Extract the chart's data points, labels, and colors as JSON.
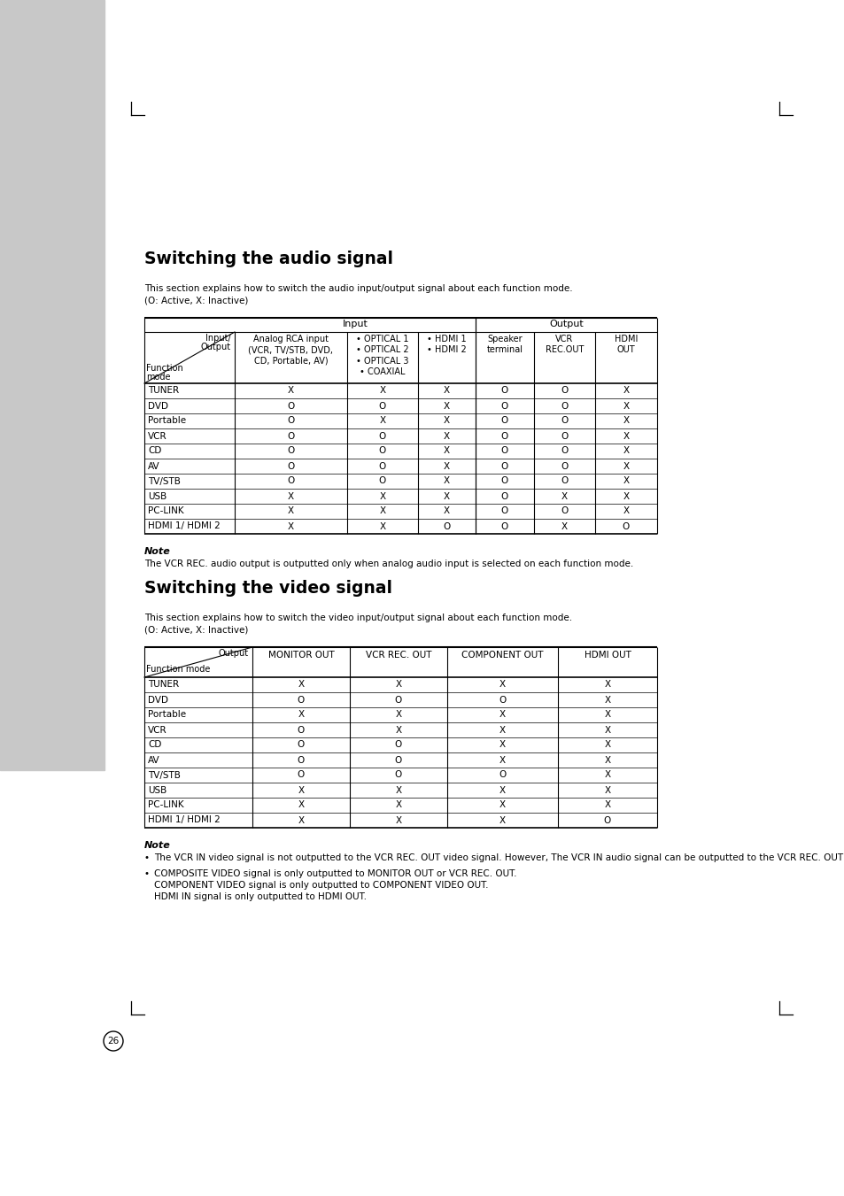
{
  "title1": "Switching the audio signal",
  "title2": "Switching the video signal",
  "bg_color": "#ffffff",
  "sidebar_color": "#c8c8c8",
  "note1_title": "Note",
  "note1_text": "The VCR REC. audio output is outputted only when analog audio input is selected on each function mode.",
  "note2_title": "Note",
  "note2_bullets": [
    "The VCR IN video signal is not outputted to the VCR REC. OUT video signal. However, The VCR IN audio signal can be outputted to the VCR REC. OUT audio signal.",
    "COMPOSITE VIDEO signal is only outputted to MONITOR OUT or VCR REC. OUT.\nCOMPONENT VIDEO signal is only outputted to COMPONENT VIDEO OUT.\nHDMI IN signal is only outputted to HDMI OUT."
  ],
  "audio_rows": [
    [
      "TUNER",
      "X",
      "X",
      "X",
      "O",
      "O",
      "X"
    ],
    [
      "DVD",
      "O",
      "O",
      "X",
      "O",
      "O",
      "X"
    ],
    [
      "Portable",
      "O",
      "X",
      "X",
      "O",
      "O",
      "X"
    ],
    [
      "VCR",
      "O",
      "O",
      "X",
      "O",
      "O",
      "X"
    ],
    [
      "CD",
      "O",
      "O",
      "X",
      "O",
      "O",
      "X"
    ],
    [
      "AV",
      "O",
      "O",
      "X",
      "O",
      "O",
      "X"
    ],
    [
      "TV/STB",
      "O",
      "O",
      "X",
      "O",
      "O",
      "X"
    ],
    [
      "USB",
      "X",
      "X",
      "X",
      "O",
      "X",
      "X"
    ],
    [
      "PC-LINK",
      "X",
      "X",
      "X",
      "O",
      "O",
      "X"
    ],
    [
      "HDMI 1/ HDMI 2",
      "X",
      "X",
      "O",
      "O",
      "X",
      "O"
    ]
  ],
  "video_rows": [
    [
      "TUNER",
      "X",
      "X",
      "X",
      "X"
    ],
    [
      "DVD",
      "O",
      "O",
      "O",
      "X"
    ],
    [
      "Portable",
      "X",
      "X",
      "X",
      "X"
    ],
    [
      "VCR",
      "O",
      "X",
      "X",
      "X"
    ],
    [
      "CD",
      "O",
      "O",
      "X",
      "X"
    ],
    [
      "AV",
      "O",
      "O",
      "X",
      "X"
    ],
    [
      "TV/STB",
      "O",
      "O",
      "O",
      "X"
    ],
    [
      "USB",
      "X",
      "X",
      "X",
      "X"
    ],
    [
      "PC-LINK",
      "X",
      "X",
      "X",
      "X"
    ],
    [
      "HDMI 1/ HDMI 2",
      "X",
      "X",
      "X",
      "O"
    ]
  ],
  "page_number": "26"
}
